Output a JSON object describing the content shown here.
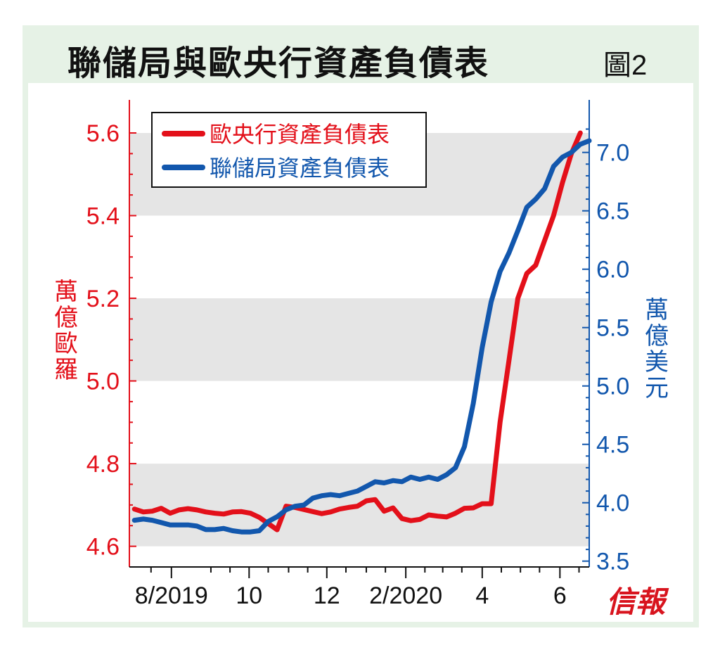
{
  "title": "聯儲局與歐央行資產負債表",
  "figure_label": "圖2",
  "brand": "信報",
  "colors": {
    "ecb": "#e3101a",
    "fed": "#1257ad",
    "band": "#e5e5e5",
    "frame": "#e6f2e6"
  },
  "chart_data": {
    "type": "line",
    "title": "聯儲局與歐央行資產負債表",
    "legend_position": "top-left",
    "left_axis": {
      "label": [
        "萬",
        "億",
        "歐",
        "羅"
      ],
      "range": [
        4.55,
        5.68
      ],
      "ticks": [
        "4.6",
        "4.8",
        "5.0",
        "5.2",
        "5.4",
        "5.6"
      ],
      "tick_values": [
        4.6,
        4.8,
        5.0,
        5.2,
        5.4,
        5.6
      ],
      "color": "#e3101a"
    },
    "right_axis": {
      "label": [
        "萬",
        "億",
        "美",
        "元"
      ],
      "range": [
        3.45,
        7.45
      ],
      "ticks": [
        "3.5",
        "4.0",
        "4.5",
        "5.0",
        "5.5",
        "6.0",
        "6.5",
        "7.0"
      ],
      "tick_values": [
        3.5,
        4.0,
        4.5,
        5.0,
        5.5,
        6.0,
        6.5,
        7.0
      ],
      "color": "#1257ad"
    },
    "x_axis": {
      "range": [
        "2019-06-29",
        "2020-06-24"
      ],
      "tick_labels": [
        {
          "date": "2019-08-01",
          "label": "8/2019"
        },
        {
          "date": "2019-10-01",
          "label": "10"
        },
        {
          "date": "2019-12-01",
          "label": "12"
        },
        {
          "date": "2020-02-01",
          "label": "2/2020"
        },
        {
          "date": "2020-04-01",
          "label": "4"
        },
        {
          "date": "2020-06-01",
          "label": "6"
        }
      ],
      "minor_ticks": [
        "2019-07-16",
        "2019-09-01",
        "2019-09-16",
        "2019-10-16",
        "2019-11-01",
        "2019-11-16",
        "2019-12-16",
        "2020-01-01",
        "2020-01-16",
        "2020-02-16",
        "2020-03-01",
        "2020-03-16",
        "2020-04-16",
        "2020-05-01",
        "2020-05-16",
        "2020-06-16"
      ]
    },
    "bands": [
      [
        4.6,
        4.8
      ],
      [
        5.0,
        5.2
      ],
      [
        5.4,
        5.6
      ]
    ],
    "series": [
      {
        "name": "歐央行資產負債表",
        "axis": "left",
        "color": "#e3101a",
        "points": [
          [
            "2019-07-03",
            4.69
          ],
          [
            "2019-07-10",
            4.683
          ],
          [
            "2019-07-17",
            4.685
          ],
          [
            "2019-07-24",
            4.692
          ],
          [
            "2019-07-31",
            4.68
          ],
          [
            "2019-08-07",
            4.688
          ],
          [
            "2019-08-14",
            4.691
          ],
          [
            "2019-08-21",
            4.688
          ],
          [
            "2019-08-28",
            4.683
          ],
          [
            "2019-09-04",
            4.68
          ],
          [
            "2019-09-11",
            4.678
          ],
          [
            "2019-09-18",
            4.683
          ],
          [
            "2019-09-25",
            4.684
          ],
          [
            "2019-10-02",
            4.68
          ],
          [
            "2019-10-09",
            4.67
          ],
          [
            "2019-10-16",
            4.655
          ],
          [
            "2019-10-23",
            4.64
          ],
          [
            "2019-10-30",
            4.697
          ],
          [
            "2019-11-06",
            4.694
          ],
          [
            "2019-11-13",
            4.689
          ],
          [
            "2019-11-20",
            4.684
          ],
          [
            "2019-11-27",
            4.679
          ],
          [
            "2019-12-04",
            4.683
          ],
          [
            "2019-12-11",
            4.69
          ],
          [
            "2019-12-18",
            4.694
          ],
          [
            "2019-12-25",
            4.697
          ],
          [
            "2020-01-01",
            4.71
          ],
          [
            "2020-01-08",
            4.713
          ],
          [
            "2020-01-15",
            4.685
          ],
          [
            "2020-01-22",
            4.693
          ],
          [
            "2020-01-29",
            4.667
          ],
          [
            "2020-02-05",
            4.662
          ],
          [
            "2020-02-12",
            4.665
          ],
          [
            "2020-02-19",
            4.676
          ],
          [
            "2020-02-26",
            4.673
          ],
          [
            "2020-03-04",
            4.671
          ],
          [
            "2020-03-11",
            4.68
          ],
          [
            "2020-03-18",
            4.692
          ],
          [
            "2020-03-25",
            4.693
          ],
          [
            "2020-04-01",
            4.703
          ],
          [
            "2020-04-08",
            4.703
          ],
          [
            "2020-04-15",
            4.9
          ],
          [
            "2020-04-22",
            5.05
          ],
          [
            "2020-04-29",
            5.2
          ],
          [
            "2020-05-06",
            5.26
          ],
          [
            "2020-05-13",
            5.28
          ],
          [
            "2020-05-20",
            5.34
          ],
          [
            "2020-05-27",
            5.4
          ],
          [
            "2020-06-03",
            5.48
          ],
          [
            "2020-06-10",
            5.55
          ],
          [
            "2020-06-17",
            5.6
          ]
        ]
      },
      {
        "name": "聯儲局資產負債表",
        "axis": "right",
        "color": "#1257ad",
        "points": [
          [
            "2019-07-03",
            3.85
          ],
          [
            "2019-07-10",
            3.86
          ],
          [
            "2019-07-17",
            3.85
          ],
          [
            "2019-07-24",
            3.83
          ],
          [
            "2019-07-31",
            3.81
          ],
          [
            "2019-08-07",
            3.81
          ],
          [
            "2019-08-14",
            3.81
          ],
          [
            "2019-08-21",
            3.8
          ],
          [
            "2019-08-28",
            3.77
          ],
          [
            "2019-09-04",
            3.77
          ],
          [
            "2019-09-11",
            3.78
          ],
          [
            "2019-09-18",
            3.76
          ],
          [
            "2019-09-25",
            3.75
          ],
          [
            "2019-10-02",
            3.75
          ],
          [
            "2019-10-09",
            3.76
          ],
          [
            "2019-10-16",
            3.84
          ],
          [
            "2019-10-23",
            3.88
          ],
          [
            "2019-10-30",
            3.94
          ],
          [
            "2019-11-06",
            3.97
          ],
          [
            "2019-11-13",
            3.98
          ],
          [
            "2019-11-20",
            4.04
          ],
          [
            "2019-11-27",
            4.06
          ],
          [
            "2019-12-04",
            4.07
          ],
          [
            "2019-12-11",
            4.06
          ],
          [
            "2019-12-18",
            4.08
          ],
          [
            "2019-12-25",
            4.1
          ],
          [
            "2020-01-01",
            4.14
          ],
          [
            "2020-01-08",
            4.18
          ],
          [
            "2020-01-15",
            4.17
          ],
          [
            "2020-01-22",
            4.19
          ],
          [
            "2020-01-29",
            4.18
          ],
          [
            "2020-02-05",
            4.22
          ],
          [
            "2020-02-12",
            4.2
          ],
          [
            "2020-02-19",
            4.22
          ],
          [
            "2020-02-26",
            4.2
          ],
          [
            "2020-03-04",
            4.24
          ],
          [
            "2020-03-11",
            4.3
          ],
          [
            "2020-03-18",
            4.48
          ],
          [
            "2020-03-25",
            4.85
          ],
          [
            "2020-04-01",
            5.33
          ],
          [
            "2020-04-08",
            5.72
          ],
          [
            "2020-04-15",
            5.98
          ],
          [
            "2020-04-22",
            6.14
          ],
          [
            "2020-04-29",
            6.33
          ],
          [
            "2020-05-06",
            6.53
          ],
          [
            "2020-05-13",
            6.6
          ],
          [
            "2020-05-20",
            6.69
          ],
          [
            "2020-05-27",
            6.88
          ],
          [
            "2020-06-03",
            6.96
          ],
          [
            "2020-06-10",
            7.0
          ],
          [
            "2020-06-17",
            7.07
          ],
          [
            "2020-06-24",
            7.1
          ]
        ]
      }
    ]
  }
}
